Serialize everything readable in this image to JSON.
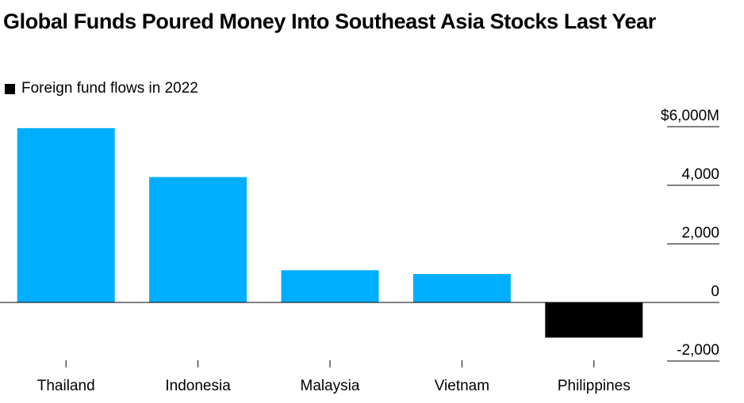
{
  "title": "Global Funds Poured Money Into Southeast Asia Stocks Last Year",
  "legend": {
    "label": "Foreign fund flows in 2022",
    "color": "#000000"
  },
  "colors": {
    "positive": "#00aeff",
    "negative": "#000000",
    "baseline": "#000000"
  },
  "chart_data": {
    "type": "bar",
    "title": "Global Funds Poured Money Into Southeast Asia Stocks Last Year",
    "categories": [
      "Thailand",
      "Indonesia",
      "Malaysia",
      "Vietnam",
      "Philippines"
    ],
    "series": [
      {
        "name": "Foreign fund flows in 2022",
        "values": [
          5950,
          4280,
          1100,
          970,
          -1200
        ]
      }
    ],
    "ylim": [
      -2000,
      6000
    ],
    "yticks": [
      6000,
      4000,
      2000,
      0,
      -2000
    ],
    "ytick_labels": [
      "$6,000M",
      "4,000",
      "2,000",
      "0",
      "-2,000"
    ],
    "yaxis_position": "right",
    "grid": false,
    "legend_position": "top-left"
  }
}
